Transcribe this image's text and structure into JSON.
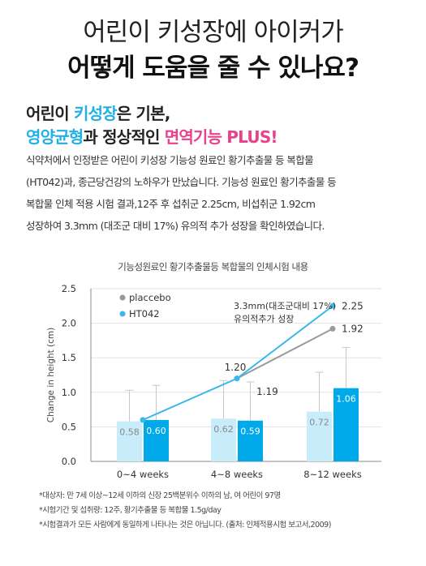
{
  "heading": {
    "line1": "어린이 키성장에 아이커가",
    "line2": "어떻게 도움을 줄 수 있나요?"
  },
  "subheading": {
    "l1_a": "어린이 ",
    "l1_b": "키성장",
    "l1_c": "은 기본,",
    "l2_a": "영양균형",
    "l2_b": "과 정상적인 ",
    "l2_c": "면역기능 PLUS!"
  },
  "body": [
    "식약처에서 인정받은 어린이 키성장 기능성 원료인 황기추출물 등 복합물",
    "(HT042)과, 종근당건강의 노하우가 만났습니다. 기능성 원료인 황기추출물 등",
    "복합물 인체 적용 시험 결과,12주 후 섭취군 2.25cm, 비섭취군 1.92cm",
    "성장하여 3.3mm (대조군 대비 17%) 유의적 추가 성장을 확인하였습니다."
  ],
  "colors": {
    "accent": "#1fb0e8",
    "pink": "#e8428c",
    "placebo_bar": "#c8ecf9",
    "ht042_bar": "#00a9e9",
    "placebo_line": "#999999",
    "ht042_line": "#3bb7ea"
  },
  "chart_data": {
    "type": "bar",
    "title": "기능성원료인 황기추출물등 복합물의 인체시험 내용",
    "ylabel": "Change in height (cm)",
    "ylim": [
      0,
      2.5
    ],
    "yticks": [
      "0.0",
      "0.5",
      "1.0",
      "1.5",
      "2.0",
      "2.5"
    ],
    "categories": [
      "0~4 weeks",
      "4~8 weeks",
      "8~12 weeks"
    ],
    "series": [
      {
        "name": "placcebo",
        "values": [
          0.58,
          0.62,
          0.72
        ],
        "labels": [
          "0.58",
          "0.62",
          "0.72"
        ],
        "error_top": [
          1.03,
          1.17,
          1.29
        ]
      },
      {
        "name": "HT042",
        "values": [
          0.6,
          0.59,
          1.06
        ],
        "labels": [
          "0.60",
          "0.59",
          "1.06"
        ],
        "error_top": [
          1.1,
          1.15,
          1.65
        ]
      }
    ],
    "cumulative_lines": [
      {
        "name": "placcebo",
        "points": [
          {
            "x": 1,
            "y": 1.2,
            "label": ""
          },
          {
            "x": 2,
            "y": 1.92,
            "label": "1.92"
          }
        ]
      },
      {
        "name": "HT042",
        "points": [
          {
            "x": 0,
            "y": 0.6,
            "label": ""
          },
          {
            "x": 1,
            "y": 1.2,
            "label": "1.20"
          },
          {
            "x": 2,
            "y": 2.25,
            "label": "2.25"
          }
        ]
      }
    ],
    "extra_labels": [
      {
        "text": "1.19"
      }
    ],
    "annotation": [
      "3.3mm(대조군대비 17%)",
      "유의적추가 성장"
    ],
    "legend": "top-left"
  },
  "notes": [
    "*대상자: 만 7세 이상~12세 이하의 신장 25백분위수 이하의 남, 여 어린이 97명",
    "*시험기간 및 섭취량: 12주, 황기추출물 등 복합물 1.5g/day",
    "*시험결과가 모든 사람에게 동일하게 나타나는 것은 아닙니다. (출처: 인체적용시험 보고서,2009)"
  ]
}
